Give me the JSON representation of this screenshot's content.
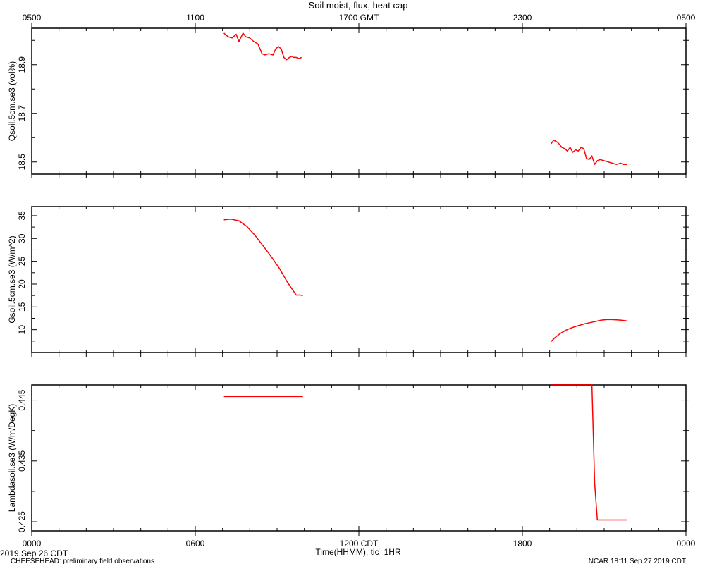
{
  "figure": {
    "title": "Soil moist, flux, heat cap",
    "top_axis": {
      "tick_labels": [
        "0500",
        "1100",
        "1700 GMT",
        "2300",
        "0500"
      ],
      "tick_hours": [
        0,
        6,
        12,
        18,
        24
      ]
    },
    "bottom_axis": {
      "tick_labels": [
        "0000",
        "0600",
        "1200 CDT",
        "1800",
        "0000"
      ],
      "tick_hours": [
        0,
        6,
        12,
        18,
        24
      ],
      "label": "Time(HHMM), tic=1HR"
    },
    "footer": {
      "date": "2019 Sep 26 CDT",
      "project": "CHEESEHEAD: preliminary field observations",
      "stamp": "NCAR 18:11 Sep 27 2019 CDT"
    },
    "line_color": "#ff0000"
  },
  "chart_data": [
    {
      "type": "line",
      "ylabel": "Qsoil.5cm.se3 (vol%)",
      "xlim": [
        0,
        24
      ],
      "ylim": [
        18.45,
        19.05
      ],
      "yticks": [
        18.5,
        18.7,
        18.9
      ],
      "ytick_labels": [
        "18.5",
        "18.7",
        "18.9"
      ],
      "series": [
        {
          "segments": [
            {
              "x": [
                7.05,
                7.2,
                7.35,
                7.5,
                7.6,
                7.75,
                7.85,
                8.0,
                8.15,
                8.3,
                8.45,
                8.55,
                8.7,
                8.85,
                8.95,
                9.05,
                9.15,
                9.25,
                9.35,
                9.45,
                9.55,
                9.6,
                9.7,
                9.8,
                9.9
              ],
              "y": [
                19.03,
                19.015,
                19.01,
                19.025,
                18.995,
                19.03,
                19.015,
                19.01,
                18.995,
                18.985,
                18.945,
                18.94,
                18.945,
                18.94,
                18.965,
                18.975,
                18.965,
                18.93,
                18.92,
                18.93,
                18.935,
                18.93,
                18.93,
                18.925,
                18.93
              ]
            },
            {
              "x": [
                19.05,
                19.15,
                19.3,
                19.45,
                19.55,
                19.65,
                19.75,
                19.85,
                19.95,
                20.05,
                20.15,
                20.25,
                20.35,
                20.45,
                20.55,
                20.65,
                20.75,
                20.85,
                21.0,
                21.15,
                21.3,
                21.45,
                21.6,
                21.7,
                21.85
              ],
              "y": [
                18.575,
                18.59,
                18.58,
                18.56,
                18.555,
                18.545,
                18.56,
                18.54,
                18.55,
                18.545,
                18.56,
                18.555,
                18.515,
                18.51,
                18.525,
                18.49,
                18.505,
                18.51,
                18.505,
                18.5,
                18.495,
                18.49,
                18.495,
                18.49,
                18.49
              ]
            }
          ]
        }
      ]
    },
    {
      "type": "line",
      "ylabel": "Gsoil.5cm.se3 (W/m^2)",
      "xlim": [
        0,
        24
      ],
      "ylim": [
        5,
        37
      ],
      "yticks": [
        10,
        15,
        20,
        25,
        30,
        35
      ],
      "ytick_labels": [
        "10",
        "15",
        "20",
        "25",
        "30",
        "35"
      ],
      "series": [
        {
          "segments": [
            {
              "x": [
                7.05,
                7.3,
                7.6,
                7.9,
                8.2,
                8.5,
                8.8,
                9.1,
                9.35,
                9.55,
                9.7,
                9.85,
                9.95
              ],
              "y": [
                34.1,
                34.25,
                33.9,
                32.6,
                30.6,
                28.3,
                25.9,
                23.3,
                20.7,
                18.9,
                17.6,
                17.6,
                17.5
              ]
            },
            {
              "x": [
                19.05,
                19.2,
                19.4,
                19.6,
                19.8,
                20.0,
                20.3,
                20.6,
                20.9,
                21.1,
                21.3,
                21.6,
                21.85
              ],
              "y": [
                7.4,
                8.3,
                9.2,
                9.9,
                10.4,
                10.8,
                11.3,
                11.7,
                12.1,
                12.2,
                12.2,
                12.1,
                11.9
              ]
            }
          ]
        }
      ]
    },
    {
      "type": "line",
      "ylabel": "Lambdasoil.se3 (W/m/DegK)",
      "xlim": [
        0,
        24
      ],
      "ylim": [
        0.4235,
        0.4475
      ],
      "yticks": [
        0.425,
        0.435,
        0.445
      ],
      "ytick_labels": [
        "0.425",
        "0.435",
        "0.445"
      ],
      "series": [
        {
          "segments": [
            {
              "x": [
                7.05,
                9.95
              ],
              "y": [
                0.4456,
                0.4456
              ]
            },
            {
              "x": [
                19.05,
                20.05,
                20.55,
                20.65,
                20.75,
                21.85
              ],
              "y": [
                0.4476,
                0.4476,
                0.4476,
                0.4313,
                0.4253,
                0.4253
              ]
            }
          ]
        }
      ]
    }
  ]
}
